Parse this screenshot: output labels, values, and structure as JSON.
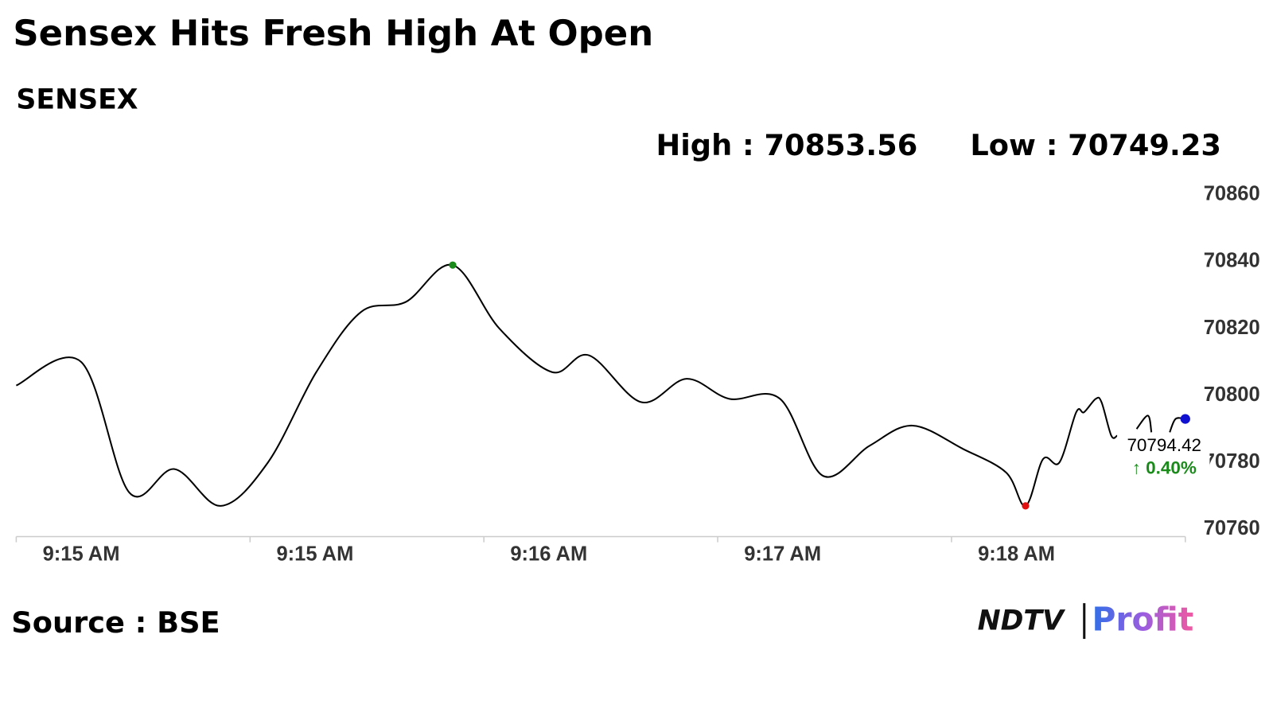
{
  "chart_data": {
    "type": "line",
    "title": "Sensex Hits Fresh High At Open",
    "subtitle": "SENSEX",
    "high_label": "High : 70853.56",
    "low_label": "Low : 70749.23",
    "source": "Source : BSE",
    "logo": {
      "brand": "NDTV",
      "product": "Profit"
    },
    "last_value_label": "70794.42",
    "change_label": "↑ 0.40%",
    "x": [
      0,
      16.7,
      29,
      40.6,
      52.5,
      64.6,
      77,
      88.5,
      100,
      112,
      124,
      137.5,
      147,
      160.4,
      172,
      183,
      196,
      207,
      219,
      230,
      243,
      254,
      259,
      263.5,
      267.7,
      272,
      274,
      277,
      278.5,
      281,
      282.5,
      285,
      287.5,
      290.4,
      291.3,
      294,
      296,
      297.5,
      300
    ],
    "series": [
      {
        "name": "SENSEX",
        "color": "#000000",
        "values": [
          70803,
          70810,
          70771,
          70778,
          70767,
          70780,
          70807,
          70825,
          70828,
          70839,
          70820,
          70807,
          70812,
          70798,
          70805,
          70799,
          70799,
          70776,
          70785,
          70791,
          70784,
          70777,
          70767,
          70781,
          70780,
          70795,
          70795,
          70799,
          70798,
          70788,
          70788,
          null,
          70790,
          70794,
          70789,
          null,
          70789,
          70793,
          70793
        ]
      }
    ],
    "markers": [
      {
        "index": 9,
        "color": "#1a8a1a"
      },
      {
        "index": 22,
        "color": "#e01010"
      },
      {
        "index": 38,
        "color": "#1010d0"
      }
    ],
    "xlim": [
      0,
      300
    ],
    "xticks": [
      {
        "value": 0,
        "label": "9:15 AM"
      },
      {
        "value": 60,
        "label": "9:15 AM"
      },
      {
        "value": 120,
        "label": "9:16 AM"
      },
      {
        "value": 180,
        "label": "9:17 AM"
      },
      {
        "value": 240,
        "label": "9:18 AM"
      }
    ],
    "ylim": [
      70760,
      70860
    ],
    "yticks": [
      70760,
      70780,
      70800,
      70820,
      70840,
      70860
    ],
    "grid": false
  }
}
